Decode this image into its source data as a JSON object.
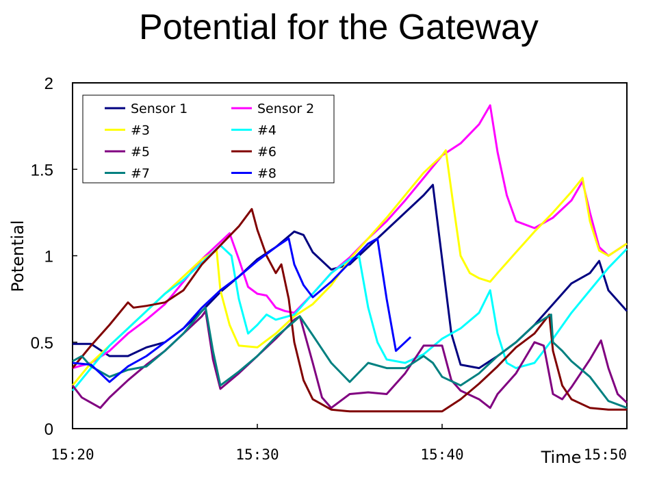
{
  "chart_data": {
    "type": "line",
    "title": "Potential for the Gateway",
    "xlabel": "Time",
    "ylabel": "Potential",
    "xlim": [
      "15:20",
      "15:50"
    ],
    "ylim": [
      0,
      2
    ],
    "x_tick_labels": [
      "15:20",
      "15:30",
      "15:40",
      "15:50"
    ],
    "y_tick_labels": [
      "0",
      "0.5",
      "1",
      "1.5",
      "2"
    ],
    "grid": false,
    "legend_position": "top-left",
    "series": [
      {
        "name": "Sensor 1",
        "color": "#000080",
        "points": [
          [
            "15:20",
            0.49
          ],
          [
            "15:21",
            0.49
          ],
          [
            "15:22",
            0.42
          ],
          [
            "15:23",
            0.42
          ],
          [
            "15:24",
            0.47
          ],
          [
            "15:25",
            0.5
          ],
          [
            "15:26",
            0.58
          ],
          [
            "15:27",
            0.68
          ],
          [
            "15:28",
            0.79
          ],
          [
            "15:29",
            0.88
          ],
          [
            "15:30",
            0.98
          ],
          [
            "15:31",
            1.05
          ],
          [
            "15:32",
            1.14
          ],
          [
            "15:32.5",
            1.12
          ],
          [
            "15:33",
            1.02
          ],
          [
            "15:34",
            0.92
          ],
          [
            "15:35",
            0.95
          ],
          [
            "15:36",
            1.05
          ],
          [
            "15:37",
            1.15
          ],
          [
            "15:38",
            1.25
          ],
          [
            "15:39",
            1.35
          ],
          [
            "15:39.5",
            1.41
          ],
          [
            "15:40",
            0.98
          ],
          [
            "15:40.5",
            0.55
          ],
          [
            "15:41",
            0.37
          ],
          [
            "15:42",
            0.35
          ],
          [
            "15:43",
            0.42
          ],
          [
            "15:44",
            0.5
          ],
          [
            "15:45",
            0.6
          ],
          [
            "15:46",
            0.72
          ],
          [
            "15:47",
            0.84
          ],
          [
            "15:48",
            0.9
          ],
          [
            "15:48.5",
            0.97
          ],
          [
            "15:49",
            0.8
          ],
          [
            "15:50",
            0.68
          ]
        ]
      },
      {
        "name": "Sensor 2",
        "color": "#ff00ff",
        "points": [
          [
            "15:20",
            0.35
          ],
          [
            "15:21",
            0.38
          ],
          [
            "15:22",
            0.45
          ],
          [
            "15:23",
            0.55
          ],
          [
            "15:24",
            0.63
          ],
          [
            "15:25",
            0.72
          ],
          [
            "15:26",
            0.85
          ],
          [
            "15:27",
            0.98
          ],
          [
            "15:28",
            1.08
          ],
          [
            "15:28.5",
            1.13
          ],
          [
            "15:29",
            0.98
          ],
          [
            "15:29.5",
            0.82
          ],
          [
            "15:30",
            0.78
          ],
          [
            "15:30.5",
            0.77
          ],
          [
            "15:31",
            0.7
          ],
          [
            "15:31.5",
            0.68
          ],
          [
            "15:32",
            0.67
          ],
          [
            "15:33",
            0.78
          ],
          [
            "15:34",
            0.9
          ],
          [
            "15:35",
            0.99
          ],
          [
            "15:36",
            1.1
          ],
          [
            "15:37",
            1.2
          ],
          [
            "15:38",
            1.32
          ],
          [
            "15:39",
            1.45
          ],
          [
            "15:40",
            1.58
          ],
          [
            "15:41",
            1.65
          ],
          [
            "15:42",
            1.76
          ],
          [
            "15:42.6",
            1.87
          ],
          [
            "15:43",
            1.6
          ],
          [
            "15:43.5",
            1.35
          ],
          [
            "15:44",
            1.2
          ],
          [
            "15:45",
            1.16
          ],
          [
            "15:46",
            1.22
          ],
          [
            "15:47",
            1.32
          ],
          [
            "15:47.6",
            1.43
          ],
          [
            "15:48",
            1.25
          ],
          [
            "15:48.5",
            1.05
          ],
          [
            "15:49",
            1.0
          ],
          [
            "15:50",
            1.07
          ]
        ]
      },
      {
        "name": "#3",
        "color": "#ffff00",
        "points": [
          [
            "15:20",
            0.25
          ],
          [
            "15:21",
            0.38
          ],
          [
            "15:22",
            0.48
          ],
          [
            "15:23",
            0.58
          ],
          [
            "15:24",
            0.68
          ],
          [
            "15:25",
            0.78
          ],
          [
            "15:26",
            0.88
          ],
          [
            "15:27",
            0.98
          ],
          [
            "15:27.8",
            1.03
          ],
          [
            "15:28",
            0.8
          ],
          [
            "15:28.5",
            0.6
          ],
          [
            "15:29",
            0.48
          ],
          [
            "15:30",
            0.47
          ],
          [
            "15:31",
            0.55
          ],
          [
            "15:32",
            0.65
          ],
          [
            "15:33",
            0.72
          ],
          [
            "15:34",
            0.83
          ],
          [
            "15:35",
            0.98
          ],
          [
            "15:36",
            1.1
          ],
          [
            "15:37",
            1.22
          ],
          [
            "15:38",
            1.35
          ],
          [
            "15:39",
            1.48
          ],
          [
            "15:40",
            1.58
          ],
          [
            "15:40.2",
            1.61
          ],
          [
            "15:40.6",
            1.3
          ],
          [
            "15:41",
            1.0
          ],
          [
            "15:41.5",
            0.9
          ],
          [
            "15:42",
            0.87
          ],
          [
            "15:42.6",
            0.85
          ],
          [
            "15:43",
            0.9
          ],
          [
            "15:44",
            1.02
          ],
          [
            "15:45",
            1.14
          ],
          [
            "15:46",
            1.25
          ],
          [
            "15:47",
            1.37
          ],
          [
            "15:47.6",
            1.45
          ],
          [
            "15:48",
            1.2
          ],
          [
            "15:48.5",
            1.03
          ],
          [
            "15:49",
            1.0
          ],
          [
            "15:50",
            1.07
          ]
        ]
      },
      {
        "name": "#4",
        "color": "#00ffff",
        "points": [
          [
            "15:20",
            0.22
          ],
          [
            "15:21",
            0.35
          ],
          [
            "15:22",
            0.48
          ],
          [
            "15:23",
            0.58
          ],
          [
            "15:24",
            0.68
          ],
          [
            "15:25",
            0.78
          ],
          [
            "15:26",
            0.86
          ],
          [
            "15:27",
            0.96
          ],
          [
            "15:28",
            1.06
          ],
          [
            "15:28.6",
            1.0
          ],
          [
            "15:29",
            0.75
          ],
          [
            "15:29.5",
            0.55
          ],
          [
            "15:30",
            0.6
          ],
          [
            "15:30.5",
            0.66
          ],
          [
            "15:31",
            0.63
          ],
          [
            "15:32",
            0.66
          ],
          [
            "15:33",
            0.78
          ],
          [
            "15:34",
            0.9
          ],
          [
            "15:35",
            0.98
          ],
          [
            "15:35.5",
            1.0
          ],
          [
            "15:36",
            0.7
          ],
          [
            "15:36.5",
            0.5
          ],
          [
            "15:37",
            0.4
          ],
          [
            "15:38",
            0.38
          ],
          [
            "15:39",
            0.43
          ],
          [
            "15:40",
            0.52
          ],
          [
            "15:41",
            0.58
          ],
          [
            "15:42",
            0.67
          ],
          [
            "15:42.6",
            0.8
          ],
          [
            "15:43",
            0.55
          ],
          [
            "15:43.5",
            0.38
          ],
          [
            "15:44",
            0.35
          ],
          [
            "15:45",
            0.38
          ],
          [
            "15:46",
            0.52
          ],
          [
            "15:47",
            0.67
          ],
          [
            "15:48",
            0.8
          ],
          [
            "15:49",
            0.93
          ],
          [
            "15:50",
            1.04
          ]
        ]
      },
      {
        "name": "#5",
        "color": "#800080",
        "points": [
          [
            "15:20",
            0.25
          ],
          [
            "15:20.5",
            0.18
          ],
          [
            "15:21",
            0.15
          ],
          [
            "15:21.5",
            0.12
          ],
          [
            "15:22",
            0.18
          ],
          [
            "15:23",
            0.28
          ],
          [
            "15:24",
            0.37
          ],
          [
            "15:25",
            0.45
          ],
          [
            "15:26",
            0.55
          ],
          [
            "15:27",
            0.65
          ],
          [
            "15:27.2",
            0.68
          ],
          [
            "15:27.6",
            0.4
          ],
          [
            "15:28",
            0.23
          ],
          [
            "15:29",
            0.32
          ],
          [
            "15:30",
            0.42
          ],
          [
            "15:31",
            0.52
          ],
          [
            "15:32",
            0.63
          ],
          [
            "15:32.3",
            0.65
          ],
          [
            "15:33",
            0.38
          ],
          [
            "15:33.5",
            0.18
          ],
          [
            "15:34",
            0.12
          ],
          [
            "15:35",
            0.2
          ],
          [
            "15:36",
            0.21
          ],
          [
            "15:37",
            0.2
          ],
          [
            "15:38",
            0.32
          ],
          [
            "15:39",
            0.48
          ],
          [
            "15:40",
            0.48
          ],
          [
            "15:40.5",
            0.28
          ],
          [
            "15:41",
            0.22
          ],
          [
            "15:42",
            0.17
          ],
          [
            "15:42.6",
            0.12
          ],
          [
            "15:43",
            0.2
          ],
          [
            "15:44",
            0.32
          ],
          [
            "15:45",
            0.5
          ],
          [
            "15:45.5",
            0.48
          ],
          [
            "15:46",
            0.2
          ],
          [
            "15:46.5",
            0.17
          ],
          [
            "15:47",
            0.24
          ],
          [
            "15:48",
            0.4
          ],
          [
            "15:48.6",
            0.51
          ],
          [
            "15:49",
            0.35
          ],
          [
            "15:49.5",
            0.2
          ],
          [
            "15:50",
            0.15
          ]
        ]
      },
      {
        "name": "#6",
        "color": "#800000",
        "points": [
          [
            "15:20",
            0.35
          ],
          [
            "15:21",
            0.48
          ],
          [
            "15:22",
            0.6
          ],
          [
            "15:23",
            0.73
          ],
          [
            "15:23.3",
            0.7
          ],
          [
            "15:24",
            0.71
          ],
          [
            "15:25",
            0.73
          ],
          [
            "15:26",
            0.8
          ],
          [
            "15:27",
            0.95
          ],
          [
            "15:28",
            1.06
          ],
          [
            "15:29",
            1.17
          ],
          [
            "15:29.7",
            1.27
          ],
          [
            "15:30",
            1.15
          ],
          [
            "15:30.5",
            1.0
          ],
          [
            "15:31",
            0.9
          ],
          [
            "15:31.3",
            0.95
          ],
          [
            "15:31.7",
            0.75
          ],
          [
            "15:32",
            0.5
          ],
          [
            "15:32.5",
            0.28
          ],
          [
            "15:33",
            0.17
          ],
          [
            "15:34",
            0.11
          ],
          [
            "15:35",
            0.1
          ],
          [
            "15:37",
            0.1
          ],
          [
            "15:39",
            0.1
          ],
          [
            "15:40",
            0.1
          ],
          [
            "15:41",
            0.17
          ],
          [
            "15:42",
            0.26
          ],
          [
            "15:43",
            0.36
          ],
          [
            "15:44",
            0.47
          ],
          [
            "15:45",
            0.55
          ],
          [
            "15:45.8",
            0.66
          ],
          [
            "15:46",
            0.45
          ],
          [
            "15:46.5",
            0.25
          ],
          [
            "15:47",
            0.17
          ],
          [
            "15:48",
            0.12
          ],
          [
            "15:49",
            0.11
          ],
          [
            "15:50",
            0.11
          ]
        ]
      },
      {
        "name": "#7",
        "color": "#008080",
        "points": [
          [
            "15:20",
            0.39
          ],
          [
            "15:20.5",
            0.42
          ],
          [
            "15:21",
            0.36
          ],
          [
            "15:22",
            0.3
          ],
          [
            "15:23",
            0.34
          ],
          [
            "15:24",
            0.36
          ],
          [
            "15:25",
            0.45
          ],
          [
            "15:26",
            0.55
          ],
          [
            "15:27",
            0.68
          ],
          [
            "15:27.2",
            0.7
          ],
          [
            "15:27.6",
            0.45
          ],
          [
            "15:28",
            0.25
          ],
          [
            "15:29",
            0.33
          ],
          [
            "15:30",
            0.42
          ],
          [
            "15:31",
            0.53
          ],
          [
            "15:32",
            0.62
          ],
          [
            "15:32.3",
            0.65
          ],
          [
            "15:33",
            0.54
          ],
          [
            "15:34",
            0.38
          ],
          [
            "15:35",
            0.27
          ],
          [
            "15:36",
            0.38
          ],
          [
            "15:37",
            0.35
          ],
          [
            "15:38",
            0.35
          ],
          [
            "15:39",
            0.42
          ],
          [
            "15:39.5",
            0.38
          ],
          [
            "15:40",
            0.3
          ],
          [
            "15:41",
            0.25
          ],
          [
            "15:42",
            0.32
          ],
          [
            "15:43",
            0.42
          ],
          [
            "15:44",
            0.5
          ],
          [
            "15:45",
            0.6
          ],
          [
            "15:45.9",
            0.66
          ],
          [
            "15:46",
            0.5
          ],
          [
            "15:46.5",
            0.45
          ],
          [
            "15:47",
            0.39
          ],
          [
            "15:48",
            0.3
          ],
          [
            "15:49",
            0.16
          ],
          [
            "15:50",
            0.12
          ]
        ]
      },
      {
        "name": "#8",
        "color": "#0000ff",
        "points": [
          [
            "15:20",
            0.38
          ],
          [
            "15:21",
            0.37
          ],
          [
            "15:21.5",
            0.32
          ],
          [
            "15:22",
            0.27
          ],
          [
            "15:23",
            0.36
          ],
          [
            "15:24",
            0.42
          ],
          [
            "15:25",
            0.5
          ],
          [
            "15:26",
            0.58
          ],
          [
            "15:27",
            0.7
          ],
          [
            "15:28",
            0.8
          ],
          [
            "15:29",
            0.88
          ],
          [
            "15:30",
            0.97
          ],
          [
            "15:31",
            1.05
          ],
          [
            "15:31.7",
            1.1
          ],
          [
            "15:32",
            0.95
          ],
          [
            "15:32.5",
            0.83
          ],
          [
            "15:33",
            0.76
          ],
          [
            "15:34",
            0.85
          ],
          [
            "15:35",
            0.96
          ],
          [
            "15:36",
            1.07
          ],
          [
            "15:36.5",
            1.1
          ],
          [
            "15:37",
            0.75
          ],
          [
            "15:37.5",
            0.45
          ],
          [
            "15:38",
            0.5
          ],
          [
            "15:38.3",
            0.53
          ]
        ]
      }
    ]
  },
  "legend_entries": [
    "Sensor 1",
    "Sensor 2",
    "#3",
    "#4",
    "#5",
    "#6",
    "#7",
    "#8"
  ]
}
